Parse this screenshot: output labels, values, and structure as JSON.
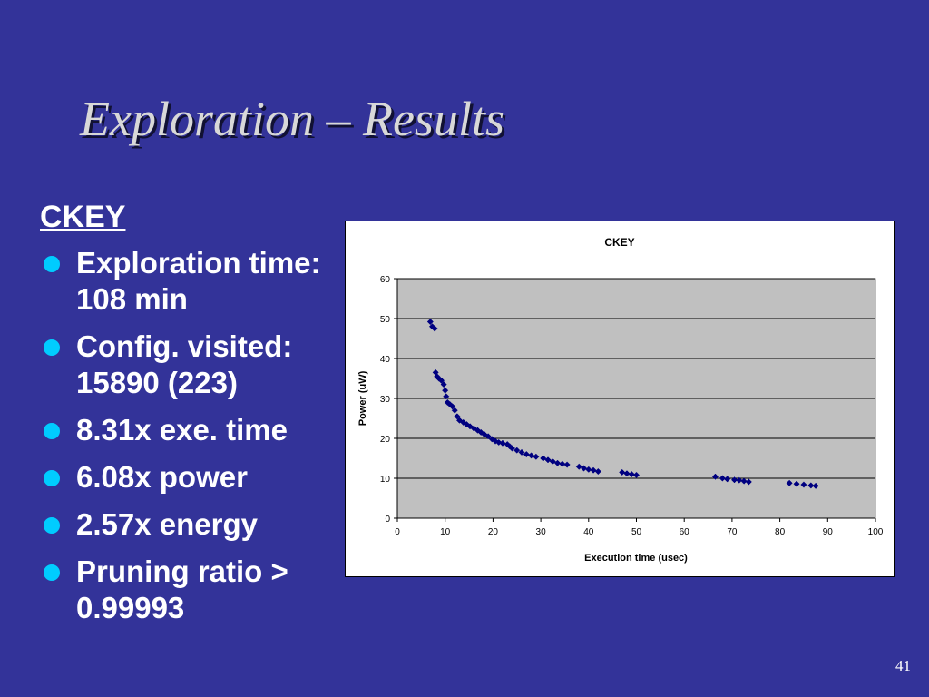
{
  "slide": {
    "title": "Exploration – Results",
    "heading": "CKEY",
    "bullets": [
      "Exploration time: 108 min",
      "Config. visited: 15890 (223)",
      "8.31x exe. time",
      "6.08x power",
      "2.57x energy",
      "Pruning ratio > 0.99993"
    ],
    "page_number": "41",
    "colors": {
      "background": "#333399",
      "title_text": "#d8d8d8",
      "body_text": "#ffffff",
      "bullet": "#00ccff",
      "plot_area": "#c0c0c0",
      "marker": "#000080"
    }
  },
  "chart_data": {
    "type": "scatter",
    "title": "CKEY",
    "xlabel": "Execution time (usec)",
    "ylabel": "Power (uW)",
    "xlim": [
      0,
      100
    ],
    "ylim": [
      0,
      60
    ],
    "xticks": [
      0,
      10,
      20,
      30,
      40,
      50,
      60,
      70,
      80,
      90,
      100
    ],
    "yticks": [
      0,
      10,
      20,
      30,
      40,
      50,
      60
    ],
    "grid": "horizontal",
    "legend": "none",
    "marker": "diamond",
    "series": [
      {
        "points": [
          [
            6.9,
            49.2
          ],
          [
            7.3,
            48.0
          ],
          [
            7.8,
            47.5
          ],
          [
            8.0,
            36.5
          ],
          [
            8.3,
            35.5
          ],
          [
            8.7,
            35.0
          ],
          [
            9.2,
            34.5
          ],
          [
            9.7,
            33.5
          ],
          [
            10.0,
            32.0
          ],
          [
            10.2,
            30.5
          ],
          [
            10.5,
            29.0
          ],
          [
            11.0,
            28.5
          ],
          [
            11.5,
            28.0
          ],
          [
            12.0,
            27.0
          ],
          [
            12.5,
            25.5
          ],
          [
            13.0,
            24.5
          ],
          [
            13.8,
            24.0
          ],
          [
            14.5,
            23.5
          ],
          [
            15.2,
            23.0
          ],
          [
            16.0,
            22.5
          ],
          [
            16.8,
            22.0
          ],
          [
            17.5,
            21.5
          ],
          [
            18.2,
            21.0
          ],
          [
            19.0,
            20.5
          ],
          [
            19.8,
            19.8
          ],
          [
            20.5,
            19.3
          ],
          [
            21.2,
            19.0
          ],
          [
            22.0,
            18.8
          ],
          [
            23.0,
            18.5
          ],
          [
            23.5,
            18.0
          ],
          [
            24.0,
            17.5
          ],
          [
            25.0,
            17.0
          ],
          [
            26.0,
            16.5
          ],
          [
            27.0,
            16.0
          ],
          [
            28.0,
            15.7
          ],
          [
            29.0,
            15.4
          ],
          [
            30.5,
            15.0
          ],
          [
            31.5,
            14.6
          ],
          [
            32.5,
            14.2
          ],
          [
            33.5,
            13.8
          ],
          [
            34.5,
            13.6
          ],
          [
            35.5,
            13.4
          ],
          [
            38.0,
            12.9
          ],
          [
            39.0,
            12.5
          ],
          [
            40.0,
            12.2
          ],
          [
            41.0,
            12.0
          ],
          [
            42.0,
            11.7
          ],
          [
            47.0,
            11.5
          ],
          [
            48.0,
            11.2
          ],
          [
            49.0,
            11.0
          ],
          [
            50.0,
            10.8
          ],
          [
            66.5,
            10.4
          ],
          [
            68.0,
            10.0
          ],
          [
            69.0,
            9.8
          ],
          [
            70.5,
            9.6
          ],
          [
            71.5,
            9.5
          ],
          [
            72.5,
            9.3
          ],
          [
            73.5,
            9.1
          ],
          [
            82.0,
            8.8
          ],
          [
            83.5,
            8.6
          ],
          [
            85.0,
            8.4
          ],
          [
            86.5,
            8.2
          ],
          [
            87.5,
            8.1
          ]
        ]
      }
    ]
  }
}
